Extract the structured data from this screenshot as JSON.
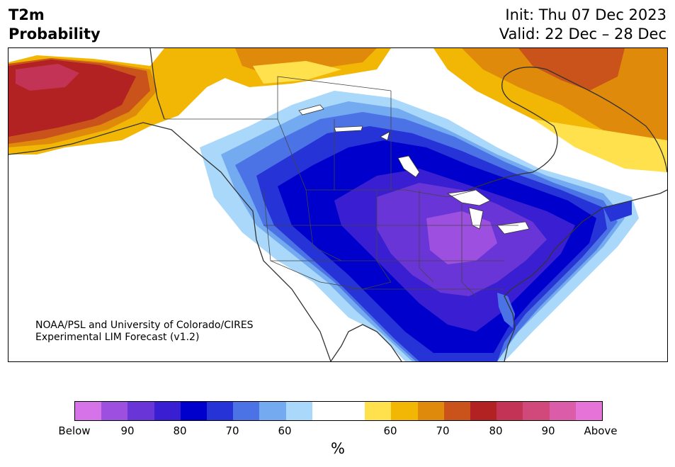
{
  "header": {
    "title_line1": "T2m",
    "title_line2": "Probability",
    "init_label": "Init: Thu 07 Dec 2023",
    "valid_label": "Valid: 22 Dec – 28 Dec"
  },
  "credit": {
    "line1": "NOAA/PSL and University of Colorado/CIRES",
    "line2": "Experimental LIM Forecast (v1.2)"
  },
  "map": {
    "region": "North America",
    "below_core_color": "#0000cc",
    "below_peak_color": "#9d50e0",
    "above_core_color": "#b22222",
    "above_peak_color": "#c93a5a"
  },
  "colorbar": {
    "colors": [
      "#d673e8",
      "#9d50e0",
      "#6a35d6",
      "#3a1fd2",
      "#0000cc",
      "#2633d6",
      "#4c73e6",
      "#73aaf0",
      "#aad8fa",
      "#ffffff",
      "#ffffff",
      "#ffe14d",
      "#f2b705",
      "#e08a0c",
      "#c9531a",
      "#b22222",
      "#c23355",
      "#d1497a",
      "#db5ca8",
      "#e673d8"
    ],
    "tick_labels": [
      "Below",
      "90",
      "80",
      "70",
      "60",
      "60",
      "70",
      "80",
      "90",
      "Above"
    ],
    "unit": "%"
  }
}
